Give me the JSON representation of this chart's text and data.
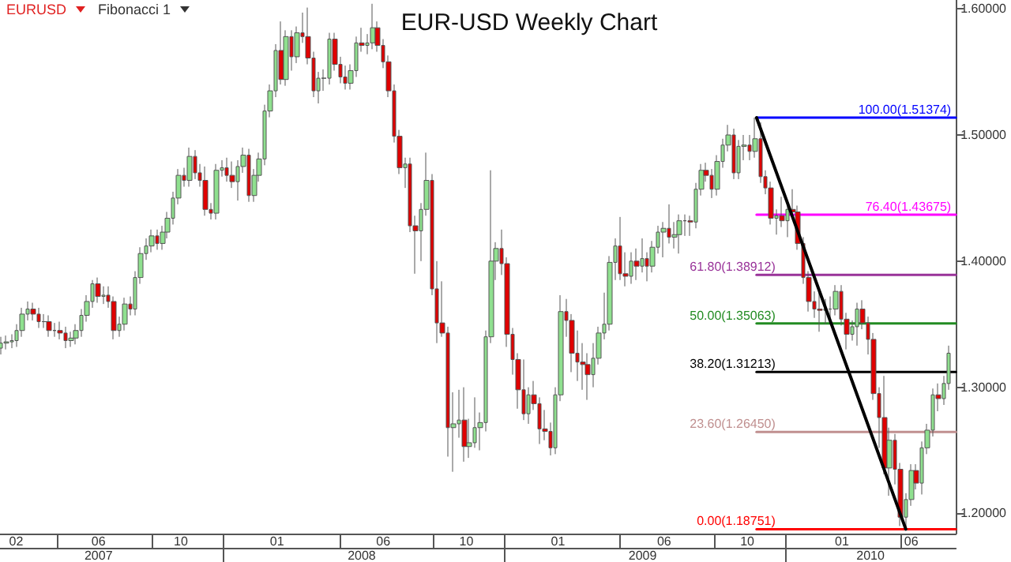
{
  "chart_data": {
    "type": "candlestick",
    "title": "EUR-USD Weekly Chart",
    "annotations": [
      "EURUSD",
      "Fibonacci 1"
    ],
    "x": [
      "2007-03-19",
      "2007-03-26",
      "2007-04-02",
      "2007-04-09",
      "2007-04-16",
      "2007-04-23",
      "2007-04-30",
      "2007-05-07",
      "2007-05-14",
      "2007-05-21",
      "2007-05-28",
      "2007-06-04",
      "2007-06-11",
      "2007-06-18",
      "2007-06-25",
      "2007-07-02",
      "2007-07-09",
      "2007-07-16",
      "2007-07-23",
      "2007-07-30",
      "2007-08-06",
      "2007-08-13",
      "2007-08-20",
      "2007-08-27",
      "2007-09-03",
      "2007-09-10",
      "2007-09-17",
      "2007-09-24",
      "2007-10-01",
      "2007-10-08",
      "2007-10-15",
      "2007-10-22",
      "2007-10-29",
      "2007-11-05",
      "2007-11-12",
      "2007-11-19",
      "2007-11-26",
      "2007-12-03",
      "2007-12-10",
      "2007-12-17",
      "2007-12-24",
      "2007-12-31",
      "2008-01-07",
      "2008-01-14",
      "2008-01-21",
      "2008-01-28",
      "2008-02-04",
      "2008-02-11",
      "2008-02-18",
      "2008-02-25",
      "2008-03-03",
      "2008-03-10",
      "2008-03-17",
      "2008-03-24",
      "2008-03-31",
      "2008-04-07",
      "2008-04-14",
      "2008-04-21",
      "2008-04-28",
      "2008-05-05",
      "2008-05-12",
      "2008-05-19",
      "2008-05-26",
      "2008-06-02",
      "2008-06-09",
      "2008-06-16",
      "2008-06-23",
      "2008-06-30",
      "2008-07-07",
      "2008-07-14",
      "2008-07-21",
      "2008-07-28",
      "2008-08-04",
      "2008-08-11",
      "2008-08-18",
      "2008-08-25",
      "2008-09-01",
      "2008-09-08",
      "2008-09-15",
      "2008-09-22",
      "2008-09-29",
      "2008-10-06",
      "2008-10-13",
      "2008-10-20",
      "2008-10-27",
      "2008-11-03",
      "2008-11-10",
      "2008-11-17",
      "2008-11-24",
      "2008-12-01",
      "2008-12-08",
      "2008-12-15",
      "2008-12-22",
      "2008-12-29",
      "2009-01-05",
      "2009-01-12",
      "2009-01-19",
      "2009-01-26",
      "2009-02-02",
      "2009-02-09",
      "2009-02-16",
      "2009-02-23",
      "2009-03-02",
      "2009-03-09",
      "2009-03-16",
      "2009-03-23",
      "2009-03-30",
      "2009-04-06",
      "2009-04-13",
      "2009-04-20",
      "2009-04-27",
      "2009-05-04",
      "2009-05-11",
      "2009-05-18",
      "2009-05-25",
      "2009-06-01",
      "2009-06-08",
      "2009-06-15",
      "2009-06-22",
      "2009-06-29",
      "2009-07-06",
      "2009-07-13",
      "2009-07-20",
      "2009-07-27",
      "2009-08-03",
      "2009-08-10",
      "2009-08-17",
      "2009-08-24",
      "2009-08-31",
      "2009-09-07",
      "2009-09-14",
      "2009-09-21",
      "2009-09-28",
      "2009-10-05",
      "2009-10-12",
      "2009-10-19",
      "2009-10-26",
      "2009-11-02",
      "2009-11-09",
      "2009-11-16",
      "2009-11-23",
      "2009-11-30",
      "2009-12-07",
      "2009-12-14",
      "2009-12-21",
      "2009-12-28",
      "2010-01-04",
      "2010-01-11",
      "2010-01-18",
      "2010-01-25",
      "2010-02-01",
      "2010-02-08",
      "2010-02-15",
      "2010-02-22",
      "2010-03-01",
      "2010-03-08",
      "2010-03-15",
      "2010-03-22",
      "2010-03-29",
      "2010-04-05",
      "2010-04-12",
      "2010-04-19",
      "2010-04-26",
      "2010-05-03",
      "2010-05-10",
      "2010-05-17",
      "2010-05-24",
      "2010-05-31",
      "2010-06-07",
      "2010-06-14",
      "2010-06-21",
      "2010-06-28",
      "2010-07-05",
      "2010-07-12",
      "2010-07-19",
      "2010-07-26",
      "2010-08-02"
    ],
    "ohlc": [
      [
        1.331,
        1.34,
        1.326,
        1.335
      ],
      [
        1.335,
        1.341,
        1.33,
        1.336
      ],
      [
        1.336,
        1.342,
        1.331,
        1.337
      ],
      [
        1.337,
        1.35,
        1.332,
        1.345
      ],
      [
        1.345,
        1.363,
        1.34,
        1.358
      ],
      [
        1.358,
        1.368,
        1.353,
        1.362
      ],
      [
        1.362,
        1.367,
        1.353,
        1.358
      ],
      [
        1.358,
        1.363,
        1.347,
        1.352
      ],
      [
        1.352,
        1.358,
        1.347,
        1.352
      ],
      [
        1.352,
        1.357,
        1.34,
        1.345
      ],
      [
        1.345,
        1.351,
        1.34,
        1.345
      ],
      [
        1.345,
        1.352,
        1.338,
        1.343
      ],
      [
        1.343,
        1.348,
        1.331,
        1.337
      ],
      [
        1.337,
        1.344,
        1.332,
        1.339
      ],
      [
        1.339,
        1.35,
        1.334,
        1.345
      ],
      [
        1.345,
        1.362,
        1.34,
        1.357
      ],
      [
        1.357,
        1.373,
        1.352,
        1.368
      ],
      [
        1.368,
        1.385,
        1.363,
        1.382
      ],
      [
        1.382,
        1.387,
        1.367,
        1.372
      ],
      [
        1.372,
        1.38,
        1.366,
        1.373
      ],
      [
        1.373,
        1.38,
        1.363,
        1.368
      ],
      [
        1.368,
        1.372,
        1.338,
        1.345
      ],
      [
        1.345,
        1.356,
        1.34,
        1.35
      ],
      [
        1.35,
        1.371,
        1.345,
        1.366
      ],
      [
        1.366,
        1.372,
        1.357,
        1.362
      ],
      [
        1.362,
        1.392,
        1.357,
        1.387
      ],
      [
        1.387,
        1.411,
        1.382,
        1.406
      ],
      [
        1.406,
        1.418,
        1.401,
        1.412
      ],
      [
        1.412,
        1.425,
        1.407,
        1.42
      ],
      [
        1.42,
        1.425,
        1.409,
        1.414
      ],
      [
        1.414,
        1.428,
        1.409,
        1.423
      ],
      [
        1.423,
        1.439,
        1.418,
        1.434
      ],
      [
        1.434,
        1.455,
        1.429,
        1.45
      ],
      [
        1.45,
        1.473,
        1.445,
        1.468
      ],
      [
        1.468,
        1.474,
        1.459,
        1.464
      ],
      [
        1.464,
        1.49,
        1.459,
        1.483
      ],
      [
        1.483,
        1.488,
        1.465,
        1.47
      ],
      [
        1.47,
        1.477,
        1.459,
        1.464
      ],
      [
        1.464,
        1.475,
        1.436,
        1.441
      ],
      [
        1.441,
        1.446,
        1.433,
        1.438
      ],
      [
        1.438,
        1.477,
        1.433,
        1.472
      ],
      [
        1.472,
        1.48,
        1.467,
        1.474
      ],
      [
        1.474,
        1.482,
        1.463,
        1.468
      ],
      [
        1.468,
        1.479,
        1.458,
        1.463
      ],
      [
        1.463,
        1.48,
        1.448,
        1.475
      ],
      [
        1.475,
        1.49,
        1.47,
        1.484
      ],
      [
        1.484,
        1.489,
        1.447,
        1.452
      ],
      [
        1.452,
        1.473,
        1.447,
        1.468
      ],
      [
        1.468,
        1.486,
        1.463,
        1.481
      ],
      [
        1.481,
        1.524,
        1.476,
        1.519
      ],
      [
        1.519,
        1.54,
        1.514,
        1.535
      ],
      [
        1.535,
        1.572,
        1.53,
        1.567
      ],
      [
        1.567,
        1.59,
        1.54,
        1.544
      ],
      [
        1.544,
        1.583,
        1.539,
        1.578
      ],
      [
        1.578,
        1.583,
        1.551,
        1.562
      ],
      [
        1.562,
        1.586,
        1.557,
        1.581
      ],
      [
        1.581,
        1.597,
        1.573,
        1.578
      ],
      [
        1.578,
        1.601,
        1.556,
        1.561
      ],
      [
        1.561,
        1.566,
        1.53,
        1.535
      ],
      [
        1.535,
        1.55,
        1.525,
        1.545
      ],
      [
        1.545,
        1.552,
        1.535,
        1.545
      ],
      [
        1.545,
        1.581,
        1.54,
        1.576
      ],
      [
        1.576,
        1.581,
        1.551,
        1.556
      ],
      [
        1.556,
        1.562,
        1.541,
        1.546
      ],
      [
        1.546,
        1.555,
        1.536,
        1.541
      ],
      [
        1.541,
        1.556,
        1.536,
        1.551
      ],
      [
        1.551,
        1.578,
        1.546,
        1.573
      ],
      [
        1.573,
        1.585,
        1.566,
        1.571
      ],
      [
        1.571,
        1.58,
        1.564,
        1.573
      ],
      [
        1.573,
        1.604,
        1.568,
        1.585
      ],
      [
        1.585,
        1.59,
        1.566,
        1.571
      ],
      [
        1.571,
        1.576,
        1.553,
        1.558
      ],
      [
        1.558,
        1.563,
        1.53,
        1.535
      ],
      [
        1.535,
        1.54,
        1.494,
        1.499
      ],
      [
        1.499,
        1.504,
        1.469,
        1.474
      ],
      [
        1.474,
        1.482,
        1.458,
        1.477
      ],
      [
        1.477,
        1.482,
        1.423,
        1.428
      ],
      [
        1.428,
        1.436,
        1.39,
        1.424
      ],
      [
        1.424,
        1.446,
        1.4,
        1.441
      ],
      [
        1.441,
        1.486,
        1.436,
        1.464
      ],
      [
        1.464,
        1.469,
        1.373,
        1.378
      ],
      [
        1.378,
        1.4,
        1.335,
        1.351
      ],
      [
        1.351,
        1.384,
        1.34,
        1.343
      ],
      [
        1.343,
        1.348,
        1.245,
        1.268
      ],
      [
        1.268,
        1.296,
        1.233,
        1.271
      ],
      [
        1.271,
        1.298,
        1.26,
        1.274
      ],
      [
        1.274,
        1.3,
        1.241,
        1.253
      ],
      [
        1.253,
        1.275,
        1.244,
        1.256
      ],
      [
        1.256,
        1.292,
        1.252,
        1.268
      ],
      [
        1.268,
        1.28,
        1.25,
        1.272
      ],
      [
        1.272,
        1.345,
        1.265,
        1.34
      ],
      [
        1.34,
        1.472,
        1.335,
        1.4
      ],
      [
        1.4,
        1.415,
        1.385,
        1.41
      ],
      [
        1.41,
        1.425,
        1.389,
        1.398
      ],
      [
        1.398,
        1.403,
        1.332,
        1.342
      ],
      [
        1.342,
        1.347,
        1.31,
        1.322
      ],
      [
        1.322,
        1.327,
        1.283,
        1.298
      ],
      [
        1.298,
        1.322,
        1.274,
        1.279
      ],
      [
        1.279,
        1.3,
        1.271,
        1.294
      ],
      [
        1.294,
        1.305,
        1.282,
        1.287
      ],
      [
        1.287,
        1.292,
        1.255,
        1.267
      ],
      [
        1.267,
        1.282,
        1.258,
        1.265
      ],
      [
        1.265,
        1.272,
        1.246,
        1.252
      ],
      [
        1.252,
        1.3,
        1.247,
        1.294
      ],
      [
        1.294,
        1.373,
        1.289,
        1.36
      ],
      [
        1.36,
        1.37,
        1.34,
        1.353
      ],
      [
        1.353,
        1.358,
        1.312,
        1.327
      ],
      [
        1.327,
        1.345,
        1.305,
        1.32
      ],
      [
        1.32,
        1.335,
        1.298,
        1.318
      ],
      [
        1.318,
        1.327,
        1.29,
        1.31
      ],
      [
        1.31,
        1.335,
        1.3,
        1.323
      ],
      [
        1.323,
        1.348,
        1.318,
        1.343
      ],
      [
        1.343,
        1.375,
        1.338,
        1.35
      ],
      [
        1.35,
        1.404,
        1.345,
        1.399
      ],
      [
        1.399,
        1.418,
        1.385,
        1.412
      ],
      [
        1.412,
        1.435,
        1.385,
        1.39
      ],
      [
        1.39,
        1.407,
        1.38,
        1.388
      ],
      [
        1.388,
        1.407,
        1.382,
        1.4
      ],
      [
        1.4,
        1.41,
        1.385,
        1.396
      ],
      [
        1.396,
        1.418,
        1.391,
        1.402
      ],
      [
        1.402,
        1.407,
        1.384,
        1.396
      ],
      [
        1.396,
        1.416,
        1.391,
        1.411
      ],
      [
        1.411,
        1.428,
        1.406,
        1.423
      ],
      [
        1.423,
        1.431,
        1.403,
        1.426
      ],
      [
        1.426,
        1.445,
        1.414,
        1.419
      ],
      [
        1.419,
        1.431,
        1.41,
        1.421
      ],
      [
        1.421,
        1.437,
        1.406,
        1.432
      ],
      [
        1.432,
        1.437,
        1.42,
        1.432
      ],
      [
        1.432,
        1.436,
        1.42,
        1.431
      ],
      [
        1.431,
        1.462,
        1.426,
        1.457
      ],
      [
        1.457,
        1.477,
        1.452,
        1.472
      ],
      [
        1.472,
        1.478,
        1.463,
        1.468
      ],
      [
        1.468,
        1.473,
        1.45,
        1.457
      ],
      [
        1.457,
        1.484,
        1.452,
        1.479
      ],
      [
        1.479,
        1.497,
        1.474,
        1.492
      ],
      [
        1.492,
        1.508,
        1.487,
        1.5
      ],
      [
        1.5,
        1.505,
        1.465,
        1.47
      ],
      [
        1.47,
        1.496,
        1.465,
        1.491
      ],
      [
        1.491,
        1.5,
        1.48,
        1.492
      ],
      [
        1.492,
        1.5,
        1.48,
        1.487
      ],
      [
        1.487,
        1.51374,
        1.482,
        1.497
      ],
      [
        1.497,
        1.51,
        1.462,
        1.467
      ],
      [
        1.467,
        1.472,
        1.453,
        1.458
      ],
      [
        1.458,
        1.463,
        1.429,
        1.434
      ],
      [
        1.434,
        1.441,
        1.421,
        1.436
      ],
      [
        1.436,
        1.451,
        1.427,
        1.432
      ],
      [
        1.432,
        1.446,
        1.419,
        1.441
      ],
      [
        1.441,
        1.457,
        1.436,
        1.439
      ],
      [
        1.439,
        1.444,
        1.409,
        1.414
      ],
      [
        1.414,
        1.419,
        1.382,
        1.387
      ],
      [
        1.387,
        1.392,
        1.36,
        1.368
      ],
      [
        1.368,
        1.376,
        1.355,
        1.362
      ],
      [
        1.362,
        1.377,
        1.344,
        1.361
      ],
      [
        1.361,
        1.37,
        1.35,
        1.362
      ],
      [
        1.362,
        1.372,
        1.352,
        1.362
      ],
      [
        1.362,
        1.381,
        1.357,
        1.376
      ],
      [
        1.376,
        1.381,
        1.349,
        1.354
      ],
      [
        1.354,
        1.359,
        1.33,
        1.342
      ],
      [
        1.342,
        1.353,
        1.337,
        1.348
      ],
      [
        1.348,
        1.367,
        1.333,
        1.362
      ],
      [
        1.362,
        1.369,
        1.346,
        1.351
      ],
      [
        1.351,
        1.356,
        1.326,
        1.338
      ],
      [
        1.338,
        1.343,
        1.29,
        1.295
      ],
      [
        1.295,
        1.3,
        1.252,
        1.276
      ],
      [
        1.276,
        1.309,
        1.231,
        1.236
      ],
      [
        1.236,
        1.268,
        1.214,
        1.258
      ],
      [
        1.258,
        1.263,
        1.223,
        1.235
      ],
      [
        1.235,
        1.24,
        1.19,
        1.197
      ],
      [
        1.197,
        1.216,
        1.18751,
        1.211
      ],
      [
        1.211,
        1.239,
        1.206,
        1.234
      ],
      [
        1.234,
        1.239,
        1.219,
        1.224
      ],
      [
        1.224,
        1.257,
        1.215,
        1.252
      ],
      [
        1.252,
        1.271,
        1.247,
        1.266
      ],
      [
        1.266,
        1.299,
        1.261,
        1.294
      ],
      [
        1.294,
        1.303,
        1.281,
        1.291
      ],
      [
        1.291,
        1.309,
        1.286,
        1.303
      ],
      [
        1.303,
        1.333,
        1.298,
        1.327
      ]
    ],
    "series": [
      {
        "type": "line",
        "name": "100.00(1.51374)",
        "color": "#0000ff",
        "x": [
          "2009-11-25",
          "2010-08-11"
        ],
        "values": [
          1.51374,
          1.51374
        ]
      },
      {
        "type": "line",
        "name": "76.40(1.43675)",
        "color": "#ff00ff",
        "x": [
          "2009-11-25",
          "2010-08-11"
        ],
        "values": [
          1.43675,
          1.43675
        ]
      },
      {
        "type": "line",
        "name": "61.80(1.38912)",
        "color": "#993399",
        "x": [
          "2009-11-25",
          "2010-08-11"
        ],
        "values": [
          1.38912,
          1.38912
        ]
      },
      {
        "type": "line",
        "name": "50.00(1.35063)",
        "color": "#228b22",
        "x": [
          "2009-11-25",
          "2010-08-11"
        ],
        "values": [
          1.35063,
          1.35063
        ]
      },
      {
        "type": "line",
        "name": "38.20(1.31213)",
        "color": "#000000",
        "x": [
          "2009-11-25",
          "2010-08-11"
        ],
        "values": [
          1.31213,
          1.31213
        ]
      },
      {
        "type": "line",
        "name": "23.60(1.26450)",
        "color": "#c09090",
        "x": [
          "2009-11-25",
          "2010-08-11"
        ],
        "values": [
          1.2645,
          1.2645
        ]
      },
      {
        "type": "line",
        "name": "0.00(1.18751)",
        "color": "#ff0000",
        "x": [
          "2009-11-25",
          "2010-08-11"
        ],
        "values": [
          1.18751,
          1.18751
        ]
      },
      {
        "type": "line",
        "color": "#000000",
        "x": [
          "2009-11-25",
          "2010-06-07"
        ],
        "values": [
          1.51374,
          1.18751
        ]
      }
    ],
    "marker": "none",
    "xlim": [
      "2007-03-18",
      "2010-08-11"
    ],
    "xticks": [
      {
        "value": "2007-04-08",
        "label": "02"
      },
      {
        "value": "2007-06-01",
        "label": null
      },
      {
        "value": "2007-07-24",
        "label": "06"
      },
      {
        "value": "2007-10-01",
        "label": null
      },
      {
        "value": "2007-11-08",
        "label": "10"
      },
      {
        "value": "2008-01-01",
        "label": null
      },
      {
        "value": "2008-03-12",
        "label": "01"
      },
      {
        "value": "2008-06-01",
        "label": null
      },
      {
        "value": "2008-07-28",
        "label": "06"
      },
      {
        "value": "2008-10-01",
        "label": null
      },
      {
        "value": "2008-11-13",
        "label": "10"
      },
      {
        "value": "2009-01-01",
        "label": null
      },
      {
        "value": "2009-03-12",
        "label": "01"
      },
      {
        "value": "2009-06-01",
        "label": null
      },
      {
        "value": "2009-07-28",
        "label": "06"
      },
      {
        "value": "2009-10-01",
        "label": null
      },
      {
        "value": "2009-11-13",
        "label": "10"
      },
      {
        "value": "2010-01-01",
        "label": null
      },
      {
        "value": "2010-03-16",
        "label": "01"
      },
      {
        "value": "2010-06-01",
        "label": null
      },
      {
        "value": "2010-06-14",
        "label": "06"
      }
    ],
    "x2lim": [
      "2007-03-18",
      "2010-08-11"
    ],
    "x2ticks": [
      {
        "value": "2007-07-24",
        "label": "2007"
      },
      {
        "value": "2008-01-01",
        "label": null
      },
      {
        "value": "2008-06-30",
        "label": "2008"
      },
      {
        "value": "2009-01-01",
        "label": null
      },
      {
        "value": "2009-06-30",
        "label": "2009"
      },
      {
        "value": "2010-01-01",
        "label": null
      },
      {
        "value": "2010-04-22",
        "label": "2010"
      }
    ],
    "ylim": [
      1.184,
      1.607
    ],
    "yticks": [
      {
        "value": 1.2,
        "label": "1.20000"
      },
      {
        "value": 1.3,
        "label": "1.30000"
      },
      {
        "value": 1.4,
        "label": "1.40000"
      },
      {
        "value": 1.5,
        "label": "1.50000"
      },
      {
        "value": 1.6,
        "label": "1.60000"
      }
    ],
    "grid": false,
    "legend": false
  }
}
